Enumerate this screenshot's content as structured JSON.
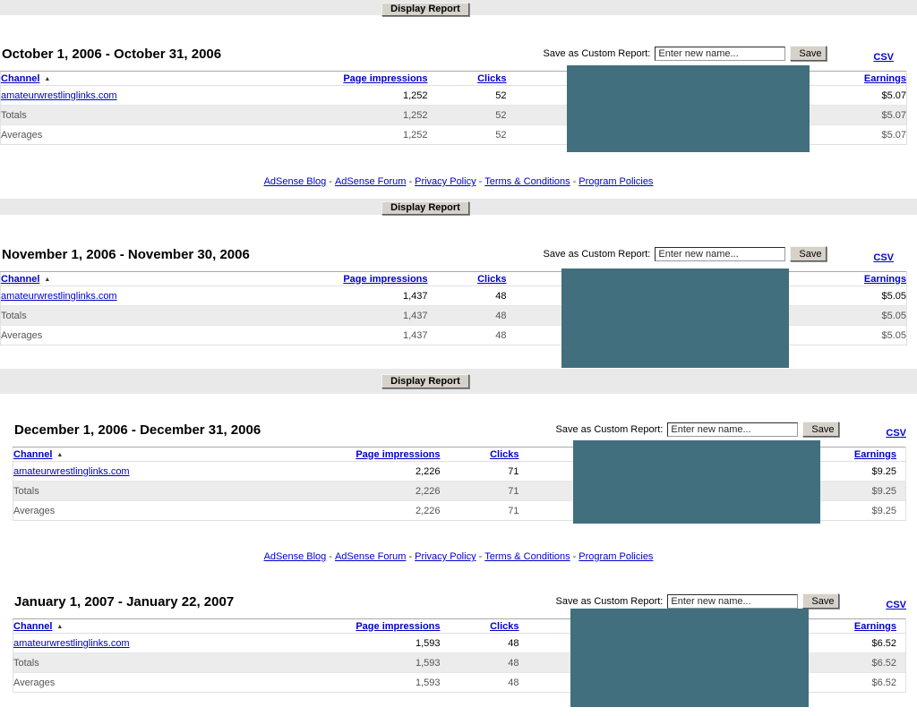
{
  "chrome": {
    "display_report_label": "Display Report",
    "save_label": "Save as Custom Report:",
    "save_input_value": "Enter new name...",
    "save_button_label": "Save",
    "csv_label": "CSV",
    "sort_arrow": "▲"
  },
  "colors": {
    "redaction": "#426f7e",
    "link_blue": "#0000cc",
    "bar_background": "#e9e9e9",
    "totals_row_background": "#ececec"
  },
  "columns": {
    "channel": "Channel",
    "page_impressions": "Page impressions",
    "clicks": "Clicks",
    "earnings": "Earnings"
  },
  "footer": {
    "separator": "-",
    "links": [
      "AdSense Blog",
      "AdSense Forum",
      "Privacy Policy",
      "Terms & Conditions",
      "Program Policies"
    ]
  },
  "sections": [
    {
      "title": "October 1, 2006 - October 31, 2006",
      "rows": [
        {
          "channel": "amateurwrestlinglinks.com",
          "page_impressions": "1,252",
          "clicks": "52",
          "earnings": "$5.07"
        },
        {
          "channel": "Totals",
          "page_impressions": "1,252",
          "clicks": "52",
          "earnings": "$5.07"
        },
        {
          "channel": "Averages",
          "page_impressions": "1,252",
          "clicks": "52",
          "earnings": "$5.07"
        }
      ]
    },
    {
      "title": "November 1, 2006 - November 30, 2006",
      "rows": [
        {
          "channel": "amateurwrestlinglinks.com",
          "page_impressions": "1,437",
          "clicks": "48",
          "earnings": "$5.05"
        },
        {
          "channel": "Totals",
          "page_impressions": "1,437",
          "clicks": "48",
          "earnings": "$5.05"
        },
        {
          "channel": "Averages",
          "page_impressions": "1,437",
          "clicks": "48",
          "earnings": "$5.05"
        }
      ]
    },
    {
      "title": "December 1, 2006 - December 31, 2006",
      "rows": [
        {
          "channel": "amateurwrestlinglinks.com",
          "page_impressions": "2,226",
          "clicks": "71",
          "earnings": "$9.25"
        },
        {
          "channel": "Totals",
          "page_impressions": "2,226",
          "clicks": "71",
          "earnings": "$9.25"
        },
        {
          "channel": "Averages",
          "page_impressions": "2,226",
          "clicks": "71",
          "earnings": "$9.25"
        }
      ]
    },
    {
      "title": "January 1, 2007 - January 22, 2007",
      "rows": [
        {
          "channel": "amateurwrestlinglinks.com",
          "page_impressions": "1,593",
          "clicks": "48",
          "earnings": "$6.52"
        },
        {
          "channel": "Totals",
          "page_impressions": "1,593",
          "clicks": "48",
          "earnings": "$6.52"
        },
        {
          "channel": "Averages",
          "page_impressions": "1,593",
          "clicks": "48",
          "earnings": "$6.52"
        }
      ]
    }
  ]
}
